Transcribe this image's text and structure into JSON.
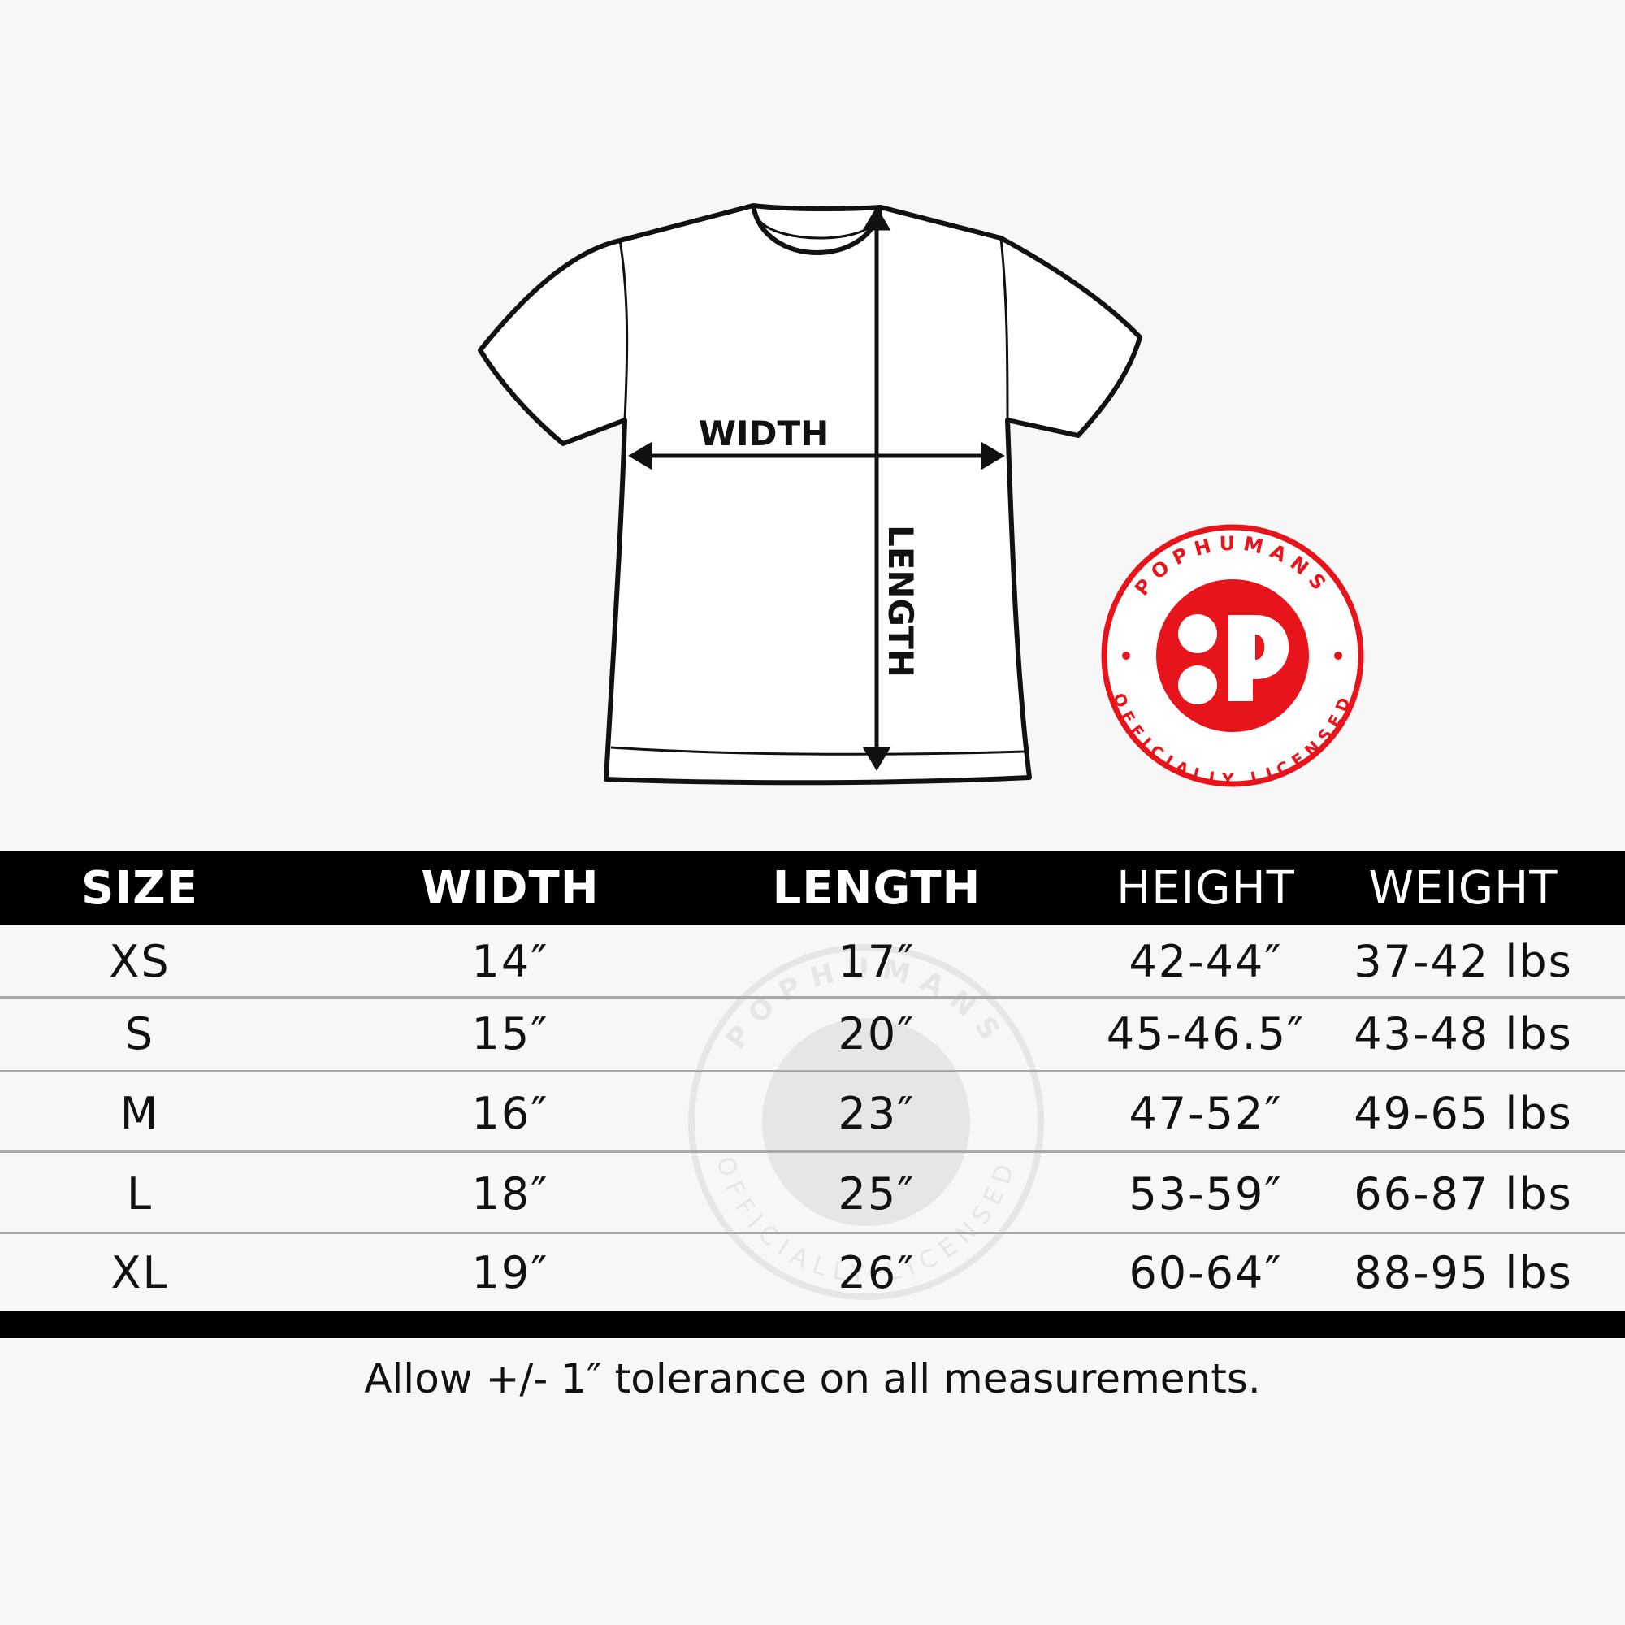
{
  "diagram": {
    "width_label": "WIDTH",
    "length_label": "LENGTH"
  },
  "logo": {
    "top_text": "POPHUMANS",
    "bottom_text": "OFFICIALLY LICENSED",
    "mark": "P",
    "color": "#e8141b"
  },
  "table": {
    "headers": [
      "SIZE",
      "WIDTH",
      "LENGTH",
      "HEIGHT",
      "WEIGHT"
    ],
    "rows": [
      [
        "XS",
        "14″",
        "17″",
        "42-44″",
        "37-42 lbs"
      ],
      [
        "S",
        "15″",
        "20″",
        "45-46.5″",
        "43-48 lbs"
      ],
      [
        "M",
        "16″",
        "23″",
        "47-52″",
        "49-65 lbs"
      ],
      [
        "L",
        "18″",
        "25″",
        "53-59″",
        "66-87 lbs"
      ],
      [
        "XL",
        "19″",
        "26″",
        "60-64″",
        "88-95 lbs"
      ]
    ]
  },
  "footer": "Allow +/- 1″ tolerance on all measurements."
}
